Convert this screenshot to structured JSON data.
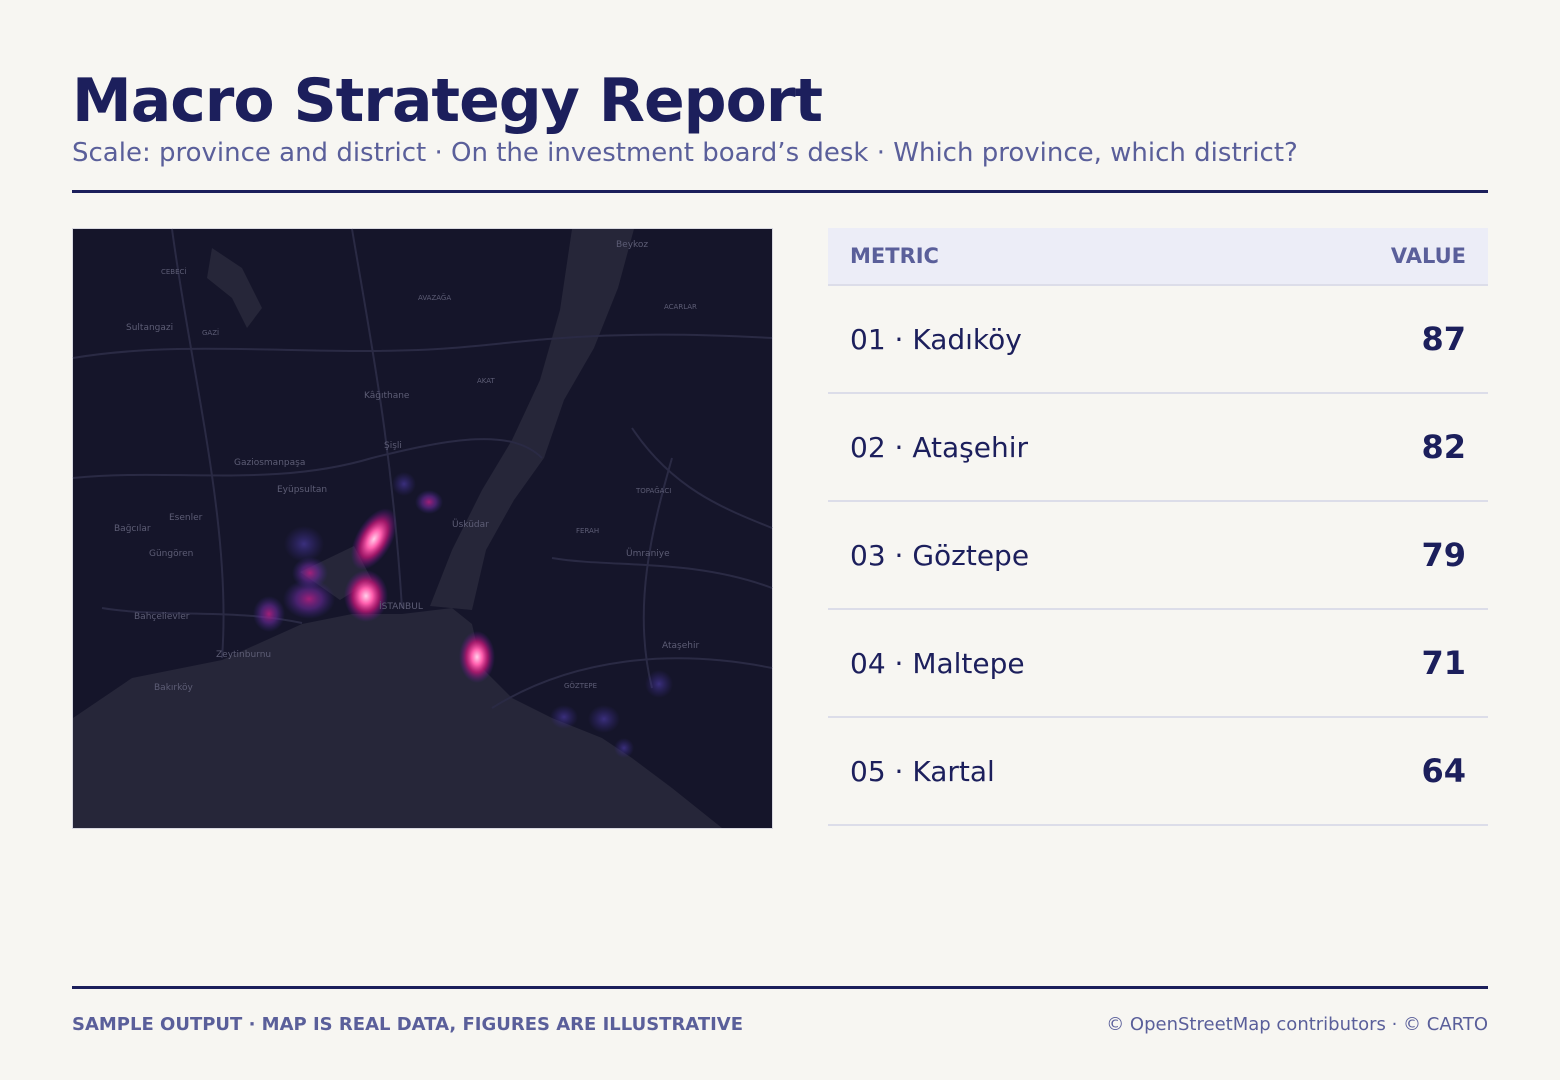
{
  "header": {
    "title": "Macro Strategy Report",
    "subtitle": "Scale: province and district · On the investment board’s desk · Which province, which district?"
  },
  "map": {
    "labels": [
      "Sultangazi",
      "Kâğıthane",
      "Şişli",
      "Gaziosmanpaşa",
      "Eyüpsultan",
      "Esenler",
      "Bağcılar",
      "Güngören",
      "Bahçelievler",
      "Zeytinburnu",
      "Bakırköy",
      "Üsküdar",
      "Ümraniye",
      "Ataşehir",
      "Beykoz",
      "İSTANBUL",
      "GAZİ",
      "CEBECİ",
      "AVAZAĞA",
      "AKAT",
      "FERAH",
      "GÖZTEPE",
      "ACARLAR",
      "TOPAĞACI"
    ]
  },
  "table": {
    "columns": [
      "METRIC",
      "VALUE"
    ],
    "rows": [
      [
        "01 · Kadıköy",
        87
      ],
      [
        "02 · Ataşehir",
        82
      ],
      [
        "03 · Göztepe",
        79
      ],
      [
        "04 · Maltepe",
        71
      ],
      [
        "05 · Kartal",
        64
      ]
    ]
  },
  "footer": {
    "note": "SAMPLE OUTPUT · MAP IS REAL DATA, FIGURES ARE ILLUSTRATIVE",
    "attribution": "© OpenStreetMap contributors · © CARTO"
  }
}
